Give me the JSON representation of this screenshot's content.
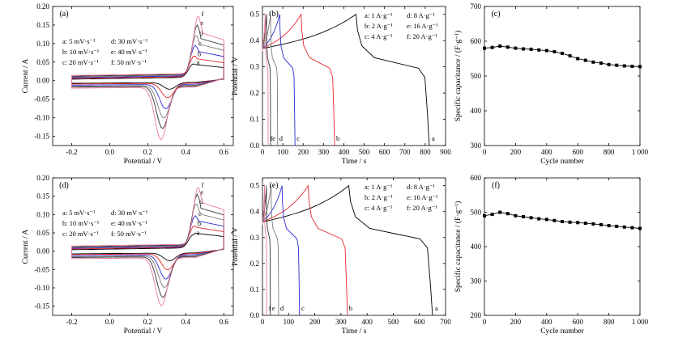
{
  "colors": {
    "black": "#000000",
    "red": "#e8262a",
    "blue": "#2b2bd1",
    "gray": "#7a7a7a",
    "dark_gray": "#333333",
    "pink": "#e97b9a"
  },
  "chart_data": [
    {
      "panel": "(a)",
      "type": "line",
      "xlabel": "Potential / V",
      "ylabel": "Current / A",
      "xlim": [
        -0.3,
        0.65
      ],
      "ylim": [
        -0.175,
        0.2
      ],
      "xticks": [
        -0.2,
        0.0,
        0.2,
        0.4,
        0.6
      ],
      "xticklabels": [
        "-0.2",
        "0.0",
        "0.2",
        "0.4",
        "0.6"
      ],
      "yticks": [
        -0.15,
        -0.1,
        -0.05,
        0.0,
        0.05,
        0.1,
        0.15,
        0.2
      ],
      "yticklabels": [
        "-0.15",
        "-0.10",
        "-0.05",
        "0.00",
        "0.05",
        "0.10",
        "0.15",
        "0.20"
      ],
      "legend": [
        "a: 5 mV·s⁻¹",
        "b: 10 mV·s⁻¹",
        "c: 20 mV·s⁻¹",
        "d: 30 mV·s⁻¹",
        "e: 40 mV·s⁻¹",
        "f: 50 mV·s⁻¹"
      ],
      "series": [
        {
          "name": "a",
          "peak_ox": [
            0.44,
            0.04
          ],
          "peak_red": [
            0.315,
            -0.022
          ],
          "base_top": 0.004,
          "base_bot": -0.004,
          "tail": 0.022
        },
        {
          "name": "b",
          "peak_ox": [
            0.445,
            0.062
          ],
          "peak_red": [
            0.305,
            -0.045
          ],
          "base_top": 0.006,
          "base_bot": -0.006,
          "tail": 0.03
        },
        {
          "name": "c",
          "peak_ox": [
            0.45,
            0.09
          ],
          "peak_red": [
            0.295,
            -0.075
          ],
          "base_top": 0.008,
          "base_bot": -0.009,
          "tail": 0.04
        },
        {
          "name": "d",
          "peak_ox": [
            0.455,
            0.118
          ],
          "peak_red": [
            0.285,
            -0.1
          ],
          "base_top": 0.01,
          "base_bot": -0.012,
          "tail": 0.05
        },
        {
          "name": "e",
          "peak_ox": [
            0.46,
            0.145
          ],
          "peak_red": [
            0.278,
            -0.128
          ],
          "base_top": 0.012,
          "base_bot": -0.014,
          "tail": 0.058
        },
        {
          "name": "f",
          "peak_ox": [
            0.465,
            0.17
          ],
          "peak_red": [
            0.27,
            -0.158
          ],
          "base_top": 0.014,
          "base_bot": -0.017,
          "tail": 0.066
        }
      ]
    },
    {
      "panel": "(b)",
      "type": "line",
      "xlabel": "Time / s",
      "ylabel": "Potential / V",
      "xlim": [
        0,
        900
      ],
      "ylim": [
        0.0,
        0.53
      ],
      "xticks": [
        0,
        100,
        200,
        300,
        400,
        500,
        600,
        700,
        800,
        900
      ],
      "xticklabels": [
        "0",
        "100",
        "200",
        "300",
        "400",
        "500",
        "600",
        "700",
        "800",
        "900"
      ],
      "yticks": [
        0.0,
        0.1,
        0.2,
        0.3,
        0.4,
        0.5
      ],
      "yticklabels": [
        "0.0",
        "0.1",
        "0.2",
        "0.3",
        "0.4",
        "0.5"
      ],
      "legend": [
        "a: 1 A·g⁻¹",
        "b: 2 A·g⁻¹",
        "c: 4 A·g⁻¹",
        "d: 8 A·g⁻¹",
        "e: 16 A·g⁻¹",
        "f: 20 A·g⁻¹"
      ],
      "series": [
        {
          "name": "a",
          "t_charge": 460,
          "t_end": 820,
          "v_start": 0.37
        },
        {
          "name": "b",
          "t_charge": 190,
          "t_end": 355,
          "v_start": 0.37
        },
        {
          "name": "c",
          "t_charge": 85,
          "t_end": 160,
          "v_start": 0.37
        },
        {
          "name": "d",
          "t_charge": 40,
          "t_end": 75,
          "v_start": 0.37
        },
        {
          "name": "e",
          "t_charge": 20,
          "t_end": 40,
          "v_start": 0.37
        },
        {
          "name": "f",
          "t_charge": 14,
          "t_end": 28,
          "v_start": 0.37
        }
      ],
      "end_labels": [
        "f",
        "e",
        "d",
        "c",
        "b",
        "a"
      ]
    },
    {
      "panel": "(c)",
      "type": "scatter",
      "xlabel": "Cycle number",
      "ylabel": "Specific capacitance / (F·g⁻¹)",
      "xlim": [
        0,
        1000
      ],
      "ylim": [
        300,
        700
      ],
      "xticks": [
        0,
        200,
        400,
        600,
        800,
        1000
      ],
      "xticklabels": [
        "0",
        "200",
        "400",
        "600",
        "800",
        "1 000"
      ],
      "yticks": [
        300,
        400,
        500,
        600,
        700
      ],
      "yticklabels": [
        "300",
        "400",
        "500",
        "600",
        "700"
      ],
      "x": [
        0,
        50,
        100,
        150,
        200,
        250,
        300,
        350,
        400,
        450,
        500,
        550,
        600,
        650,
        700,
        750,
        800,
        850,
        900,
        950,
        1000
      ],
      "y": [
        580,
        582,
        586,
        583,
        580,
        578,
        577,
        575,
        573,
        570,
        565,
        558,
        550,
        545,
        540,
        537,
        533,
        531,
        529,
        528,
        527
      ]
    },
    {
      "panel": "(d)",
      "type": "line",
      "xlabel": "Potential / V",
      "ylabel": "Current / A",
      "xlim": [
        -0.3,
        0.65
      ],
      "ylim": [
        -0.175,
        0.2
      ],
      "xticks": [
        -0.2,
        0.0,
        0.2,
        0.4,
        0.6
      ],
      "xticklabels": [
        "-0.2",
        "0.0",
        "0.2",
        "0.4",
        "0.6"
      ],
      "yticks": [
        -0.15,
        -0.1,
        -0.05,
        0.0,
        0.05,
        0.1,
        0.15,
        0.2
      ],
      "yticklabels": [
        "-0.15",
        "-0.10",
        "-0.05",
        "0.00",
        "0.05",
        "0.10",
        "0.15",
        "0.20"
      ],
      "legend": [
        "a: 5 mV·s⁻¹",
        "b: 10 mV·s⁻¹",
        "c: 20 mV·s⁻¹",
        "d: 30 mV·s⁻¹",
        "e: 40 mV·s⁻¹",
        "f: 50 mV·s⁻¹"
      ],
      "series": [
        {
          "name": "a",
          "peak_ox": [
            0.44,
            0.04
          ],
          "peak_red": [
            0.315,
            -0.025
          ],
          "base_top": 0.004,
          "base_bot": -0.004,
          "tail": 0.025
        },
        {
          "name": "b",
          "peak_ox": [
            0.445,
            0.065
          ],
          "peak_red": [
            0.305,
            -0.05
          ],
          "base_top": 0.006,
          "base_bot": -0.006,
          "tail": 0.033
        },
        {
          "name": "c",
          "peak_ox": [
            0.45,
            0.092
          ],
          "peak_red": [
            0.295,
            -0.075
          ],
          "base_top": 0.008,
          "base_bot": -0.009,
          "tail": 0.042
        },
        {
          "name": "d",
          "peak_ox": [
            0.455,
            0.125
          ],
          "peak_red": [
            0.288,
            -0.098
          ],
          "base_top": 0.01,
          "base_bot": -0.012,
          "tail": 0.052
        },
        {
          "name": "e",
          "peak_ox": [
            0.46,
            0.15
          ],
          "peak_red": [
            0.28,
            -0.125
          ],
          "base_top": 0.012,
          "base_bot": -0.014,
          "tail": 0.06
        },
        {
          "name": "f",
          "peak_ox": [
            0.465,
            0.17
          ],
          "peak_red": [
            0.272,
            -0.148
          ],
          "base_top": 0.014,
          "base_bot": -0.017,
          "tail": 0.068
        }
      ]
    },
    {
      "panel": "(e)",
      "type": "line",
      "xlabel": "Time / s",
      "ylabel": "Potential / V",
      "xlim": [
        0,
        700
      ],
      "ylim": [
        0.0,
        0.53
      ],
      "xticks": [
        0,
        100,
        200,
        300,
        400,
        500,
        600,
        700
      ],
      "xticklabels": [
        "0",
        "100",
        "200",
        "300",
        "400",
        "500",
        "600",
        "700"
      ],
      "yticks": [
        0.0,
        0.1,
        0.2,
        0.3,
        0.4,
        0.5
      ],
      "yticklabels": [
        "0.0",
        "0.1",
        "0.2",
        "0.3",
        "0.4",
        "0.5"
      ],
      "legend": [
        "a: 1 A·g⁻¹",
        "b: 2 A·g⁻¹",
        "c: 4 A·g⁻¹",
        "d: 8 A·g⁻¹",
        "e: 16 A·g⁻¹",
        "f: 20 A·g⁻¹"
      ],
      "series": [
        {
          "name": "a",
          "t_charge": 330,
          "t_end": 650,
          "v_start": 0.36
        },
        {
          "name": "b",
          "t_charge": 175,
          "t_end": 325,
          "v_start": 0.36
        },
        {
          "name": "c",
          "t_charge": 75,
          "t_end": 142,
          "v_start": 0.36
        },
        {
          "name": "d",
          "t_charge": 33,
          "t_end": 62,
          "v_start": 0.36
        },
        {
          "name": "e",
          "t_charge": 15,
          "t_end": 30,
          "v_start": 0.36
        },
        {
          "name": "f",
          "t_charge": 8,
          "t_end": 16,
          "v_start": 0.36
        }
      ],
      "end_labels": [
        "f",
        "e",
        "d",
        "c",
        "b",
        "a"
      ]
    },
    {
      "panel": "(f)",
      "type": "scatter",
      "xlabel": "Cycle number",
      "ylabel": "Specific capacitance / (F·g⁻¹)",
      "xlim": [
        0,
        1000
      ],
      "ylim": [
        200,
        600
      ],
      "xticks": [
        0,
        200,
        400,
        600,
        800,
        1000
      ],
      "xticklabels": [
        "0",
        "200",
        "400",
        "600",
        "800",
        "1 000"
      ],
      "yticks": [
        200,
        300,
        400,
        500,
        600
      ],
      "yticklabels": [
        "200",
        "300",
        "400",
        "500",
        "600"
      ],
      "x": [
        0,
        50,
        100,
        150,
        200,
        250,
        300,
        350,
        400,
        450,
        500,
        550,
        600,
        650,
        700,
        750,
        800,
        850,
        900,
        950,
        1000
      ],
      "y": [
        490,
        494,
        500,
        496,
        490,
        487,
        484,
        481,
        479,
        476,
        473,
        471,
        470,
        468,
        466,
        464,
        461,
        459,
        457,
        455,
        453
      ]
    }
  ]
}
